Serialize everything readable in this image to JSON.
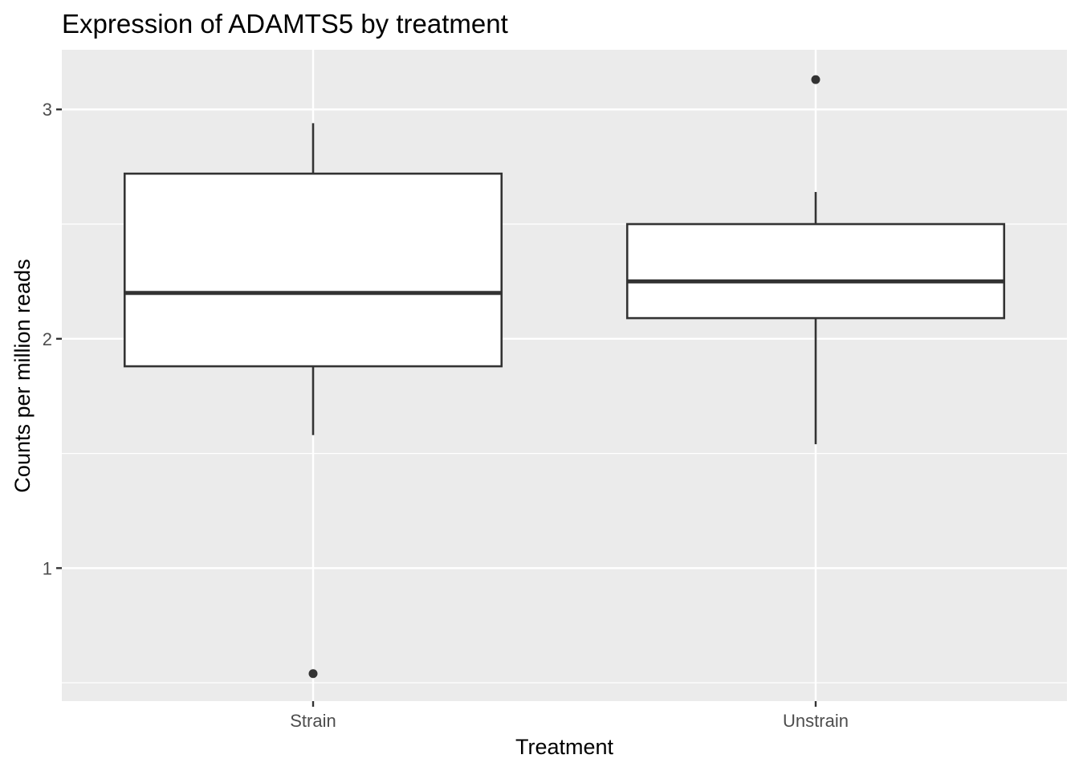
{
  "chart_data": {
    "type": "boxplot",
    "title": "Expression of ADAMTS5 by treatment",
    "xlabel": "Treatment",
    "ylabel": "Counts per million reads",
    "categories": [
      "Strain",
      "Unstrain"
    ],
    "boxes": [
      {
        "category": "Strain",
        "whisker_low": 1.58,
        "q1": 1.88,
        "median": 2.2,
        "q3": 2.72,
        "whisker_high": 2.94,
        "outliers": [
          0.54
        ]
      },
      {
        "category": "Unstrain",
        "whisker_low": 1.54,
        "q1": 2.09,
        "median": 2.25,
        "q3": 2.5,
        "whisker_high": 2.64,
        "outliers": [
          3.13
        ]
      }
    ],
    "ylim": [
      0.42,
      3.26
    ],
    "yticks": [
      1,
      2,
      3
    ],
    "ytick_labels": [
      "1",
      "2",
      "3"
    ],
    "grid": true,
    "colors": {
      "panel": "#ebebeb",
      "grid": "#ffffff",
      "box_fill": "#ffffff",
      "box_line": "#333333",
      "tick": "#333333"
    }
  }
}
